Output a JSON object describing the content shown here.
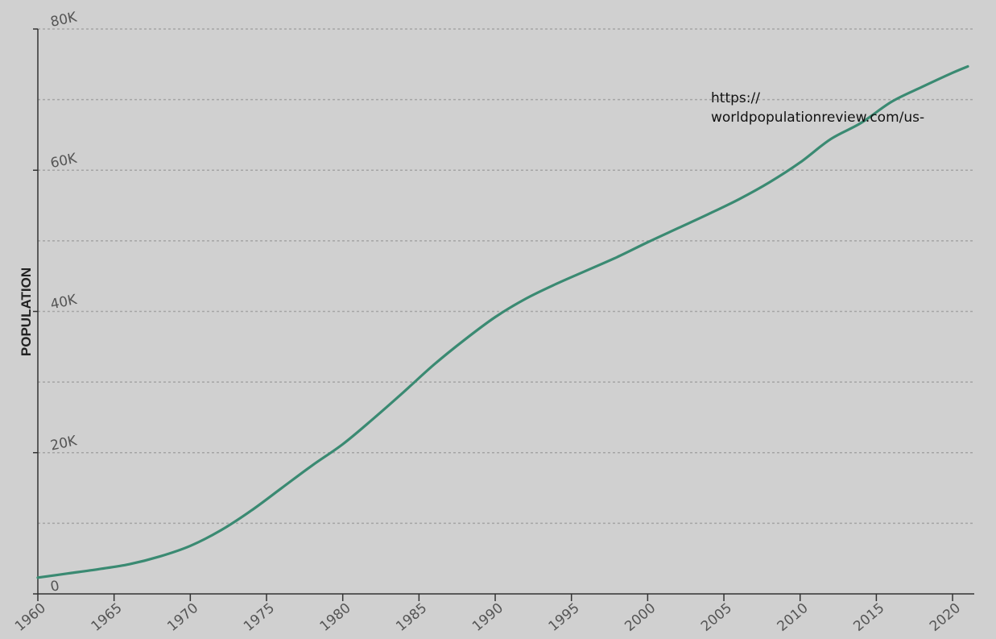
{
  "chart_data": {
    "type": "line",
    "title": "",
    "xlabel": "",
    "ylabel": "POPULATION",
    "xlim": [
      1960,
      2021
    ],
    "ylim": [
      0,
      80000
    ],
    "x_ticks": [
      "1960",
      "1965",
      "1970",
      "1975",
      "1980",
      "1985",
      "1990",
      "1995",
      "2000",
      "2005",
      "2010",
      "2015",
      "2020"
    ],
    "y_ticks": [
      {
        "value": 0,
        "label": "0"
      },
      {
        "value": 20000,
        "label": "20K"
      },
      {
        "value": 40000,
        "label": "40K"
      },
      {
        "value": 60000,
        "label": "60K"
      },
      {
        "value": 80000,
        "label": "80K"
      }
    ],
    "gridlines": [
      10000,
      20000,
      30000,
      40000,
      50000,
      60000,
      70000,
      80000
    ],
    "grid": true,
    "series": [
      {
        "color": "#3a8a72",
        "points": [
          [
            1960,
            2300
          ],
          [
            1962,
            2900
          ],
          [
            1964,
            3500
          ],
          [
            1966,
            4200
          ],
          [
            1968,
            5300
          ],
          [
            1970,
            6800
          ],
          [
            1972,
            9000
          ],
          [
            1974,
            11800
          ],
          [
            1976,
            15000
          ],
          [
            1978,
            18200
          ],
          [
            1980,
            21200
          ],
          [
            1982,
            24800
          ],
          [
            1984,
            28600
          ],
          [
            1986,
            32500
          ],
          [
            1988,
            36000
          ],
          [
            1990,
            39200
          ],
          [
            1992,
            41800
          ],
          [
            1994,
            43900
          ],
          [
            1996,
            45800
          ],
          [
            1998,
            47700
          ],
          [
            2000,
            49800
          ],
          [
            2002,
            51800
          ],
          [
            2004,
            53800
          ],
          [
            2006,
            55900
          ],
          [
            2008,
            58300
          ],
          [
            2010,
            61100
          ],
          [
            2012,
            64400
          ],
          [
            2014,
            66700
          ],
          [
            2016,
            69700
          ],
          [
            2018,
            71800
          ],
          [
            2020,
            73800
          ],
          [
            2021,
            74700
          ]
        ]
      }
    ]
  },
  "annotation": {
    "source_line1": "https://",
    "source_line2": "worldpopulationreview.com/us-"
  }
}
